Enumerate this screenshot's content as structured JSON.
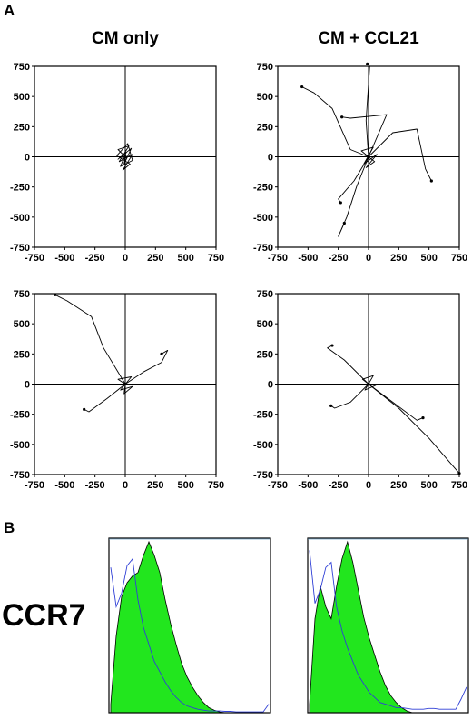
{
  "panel_labels": {
    "a": "A",
    "b": "B"
  },
  "column_titles": [
    "CM only",
    "CM + CCL21"
  ],
  "marker_label": "CCR7",
  "colors": {
    "tracks": "#000000",
    "fill": "#22e61e",
    "isotype": "#2f3fd6"
  },
  "chart_data": [
    {
      "type": "line",
      "id": "tracks-cm-only-top",
      "title": "",
      "xlim": [
        -750,
        750
      ],
      "ylim": [
        -750,
        750
      ],
      "xticks": [
        -750,
        -500,
        -250,
        0,
        250,
        500,
        750
      ],
      "yticks": [
        750,
        500,
        250,
        0,
        -250,
        -500,
        -750
      ],
      "series": [
        {
          "points": [
            [
              0,
              0
            ],
            [
              -60,
              60
            ],
            [
              30,
              90
            ],
            [
              -50,
              -40
            ],
            [
              60,
              20
            ],
            [
              -20,
              -110
            ],
            [
              40,
              -60
            ],
            [
              -70,
              10
            ],
            [
              20,
              110
            ],
            [
              60,
              -30
            ],
            [
              -40,
              -80
            ],
            [
              10,
              40
            ],
            [
              -60,
              -20
            ],
            [
              50,
              70
            ],
            [
              -10,
              -60
            ],
            [
              0,
              0
            ]
          ]
        }
      ]
    },
    {
      "type": "line",
      "id": "tracks-ccl21-top",
      "title": "",
      "xlim": [
        -750,
        750
      ],
      "ylim": [
        -750,
        750
      ],
      "xticks": [
        -750,
        -500,
        -250,
        0,
        250,
        500,
        750
      ],
      "yticks": [
        750,
        500,
        250,
        0,
        -250,
        -500,
        -750
      ],
      "series": [
        {
          "points": [
            [
              0,
              0
            ],
            [
              -150,
              60
            ],
            [
              -300,
              400
            ],
            [
              -450,
              530
            ],
            [
              -550,
              580
            ]
          ]
        },
        {
          "points": [
            [
              0,
              0
            ],
            [
              -20,
              300
            ],
            [
              10,
              750
            ],
            [
              -10,
              770
            ]
          ]
        },
        {
          "points": [
            [
              0,
              0
            ],
            [
              200,
              200
            ],
            [
              400,
              230
            ],
            [
              470,
              -100
            ],
            [
              520,
              -200
            ]
          ]
        },
        {
          "points": [
            [
              0,
              0
            ],
            [
              -100,
              -250
            ],
            [
              -180,
              -500
            ],
            [
              -250,
              -660
            ],
            [
              -200,
              -550
            ]
          ]
        },
        {
          "points": [
            [
              0,
              0
            ],
            [
              -120,
              -200
            ],
            [
              -250,
              -350
            ],
            [
              -230,
              -380
            ]
          ]
        },
        {
          "points": [
            [
              0,
              0
            ],
            [
              150,
              350
            ],
            [
              -150,
              320
            ],
            [
              -220,
              330
            ]
          ]
        },
        {
          "points": [
            [
              0,
              0
            ],
            [
              -60,
              50
            ],
            [
              40,
              80
            ],
            [
              -40,
              -60
            ],
            [
              70,
              20
            ],
            [
              -20,
              -90
            ],
            [
              50,
              -40
            ],
            [
              0,
              0
            ]
          ]
        }
      ]
    },
    {
      "type": "line",
      "id": "tracks-cm-only-bottom",
      "title": "",
      "xlim": [
        -750,
        750
      ],
      "ylim": [
        -750,
        750
      ],
      "xticks": [
        -750,
        -500,
        -250,
        0,
        250,
        500,
        750
      ],
      "yticks": [
        750,
        500,
        250,
        0,
        -250,
        -500,
        -750
      ],
      "series": [
        {
          "points": [
            [
              0,
              0
            ],
            [
              -180,
              300
            ],
            [
              -280,
              560
            ],
            [
              -480,
              690
            ],
            [
              -580,
              740
            ]
          ]
        },
        {
          "points": [
            [
              0,
              0
            ],
            [
              150,
              100
            ],
            [
              300,
              180
            ],
            [
              350,
              280
            ],
            [
              300,
              250
            ]
          ]
        },
        {
          "points": [
            [
              0,
              0
            ],
            [
              -150,
              -120
            ],
            [
              -300,
              -230
            ],
            [
              -340,
              -210
            ]
          ]
        },
        {
          "points": [
            [
              0,
              0
            ],
            [
              -60,
              40
            ],
            [
              50,
              60
            ],
            [
              -40,
              -50
            ],
            [
              60,
              -20
            ],
            [
              -10,
              -80
            ],
            [
              0,
              0
            ]
          ]
        }
      ]
    },
    {
      "type": "line",
      "id": "tracks-ccl21-bottom",
      "title": "",
      "xlim": [
        -750,
        750
      ],
      "ylim": [
        -750,
        750
      ],
      "xticks": [
        -750,
        -500,
        -250,
        0,
        250,
        500,
        750
      ],
      "yticks": [
        750,
        500,
        250,
        0,
        -250,
        -500,
        -750
      ],
      "series": [
        {
          "points": [
            [
              0,
              0
            ],
            [
              250,
              -200
            ],
            [
              500,
              -450
            ],
            [
              750,
              -740
            ]
          ]
        },
        {
          "points": [
            [
              0,
              0
            ],
            [
              200,
              -150
            ],
            [
              400,
              -300
            ],
            [
              450,
              -280
            ]
          ]
        },
        {
          "points": [
            [
              0,
              0
            ],
            [
              -150,
              -150
            ],
            [
              -280,
              -200
            ],
            [
              -310,
              -180
            ]
          ]
        },
        {
          "points": [
            [
              0,
              0
            ],
            [
              -200,
              200
            ],
            [
              -340,
              300
            ],
            [
              -300,
              320
            ]
          ]
        },
        {
          "points": [
            [
              0,
              0
            ],
            [
              -50,
              40
            ],
            [
              40,
              70
            ],
            [
              -30,
              -50
            ],
            [
              60,
              -10
            ],
            [
              0,
              0
            ]
          ]
        }
      ]
    },
    {
      "type": "area",
      "id": "ccr7-histogram-left",
      "title": "",
      "series": [
        {
          "values": [
            0.05,
            0.45,
            0.68,
            0.76,
            0.8,
            0.82,
            0.92,
            1.0,
            0.92,
            0.82,
            0.66,
            0.52,
            0.4,
            0.29,
            0.21,
            0.15,
            0.1,
            0.06,
            0.03,
            0.015,
            0.005,
            0,
            0,
            0,
            0,
            0,
            0,
            0,
            0,
            0
          ]
        },
        {
          "values": [
            0.85,
            0.62,
            0.7,
            0.86,
            0.9,
            0.66,
            0.5,
            0.4,
            0.3,
            0.24,
            0.18,
            0.13,
            0.09,
            0.06,
            0.04,
            0.03,
            0.02,
            0.015,
            0.01,
            0.01,
            0.01,
            0.008,
            0.008,
            0.005,
            0.005,
            0.005,
            0.005,
            0.005,
            0.005,
            0.05
          ]
        }
      ]
    },
    {
      "type": "area",
      "id": "ccr7-histogram-right",
      "title": "",
      "series": [
        {
          "values": [
            0.05,
            0.55,
            0.74,
            0.62,
            0.55,
            0.74,
            0.9,
            1.0,
            0.88,
            0.72,
            0.56,
            0.44,
            0.34,
            0.24,
            0.16,
            0.1,
            0.06,
            0.03,
            0.01,
            0,
            0,
            0,
            0,
            0,
            0,
            0,
            0,
            0,
            0,
            0
          ]
        },
        {
          "values": [
            0.95,
            0.64,
            0.72,
            0.85,
            0.88,
            0.62,
            0.48,
            0.38,
            0.3,
            0.22,
            0.17,
            0.12,
            0.09,
            0.06,
            0.05,
            0.04,
            0.03,
            0.03,
            0.025,
            0.02,
            0.02,
            0.02,
            0.025,
            0.025,
            0.02,
            0.02,
            0.02,
            0.02,
            0.08,
            0.15
          ]
        }
      ]
    }
  ]
}
